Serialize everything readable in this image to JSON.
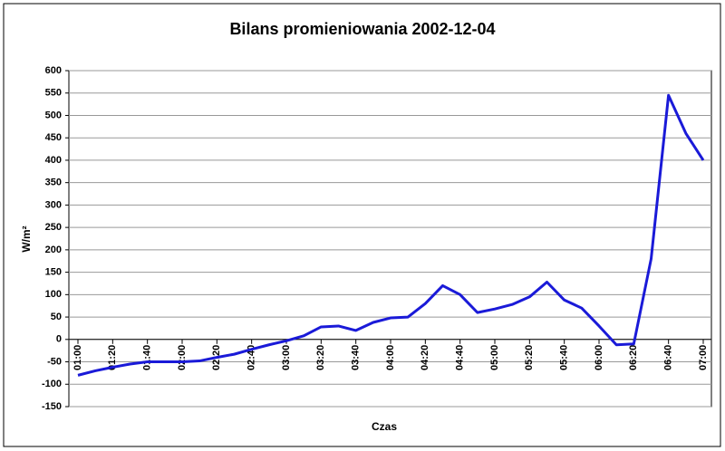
{
  "chart_data": {
    "type": "line",
    "title": "Bilans promieniowania 2002-12-04",
    "x_label": "Czas",
    "y_label": "W/m²",
    "categories": [
      "01:00",
      null,
      "01:20",
      null,
      "01:40",
      null,
      "02:00",
      null,
      "02:20",
      null,
      "02:40",
      null,
      "03:00",
      null,
      "03:20",
      null,
      "03:40",
      null,
      "04:00",
      null,
      "04:20",
      null,
      "04:40",
      null,
      "05:00",
      null,
      "05:20",
      null,
      "05:40",
      null,
      "06:00",
      null,
      "06:20",
      null,
      "06:40",
      null,
      "07:00"
    ],
    "series": [
      {
        "name": "Bilans",
        "color": "#1a1ad8",
        "values": [
          -80,
          -70,
          -62,
          -55,
          -50,
          -50,
          -50,
          -48,
          -40,
          -33,
          -22,
          -12,
          -3,
          8,
          28,
          30,
          20,
          38,
          48,
          50,
          80,
          120,
          100,
          60,
          68,
          78,
          95,
          128,
          88,
          70,
          30,
          -12,
          -10,
          180,
          545,
          460,
          400
        ]
      }
    ],
    "ylim": [
      -150,
      600
    ],
    "yticks": [
      -150,
      -100,
      -50,
      0,
      50,
      100,
      150,
      200,
      250,
      300,
      350,
      400,
      450,
      500,
      550,
      600
    ],
    "grid": true
  }
}
